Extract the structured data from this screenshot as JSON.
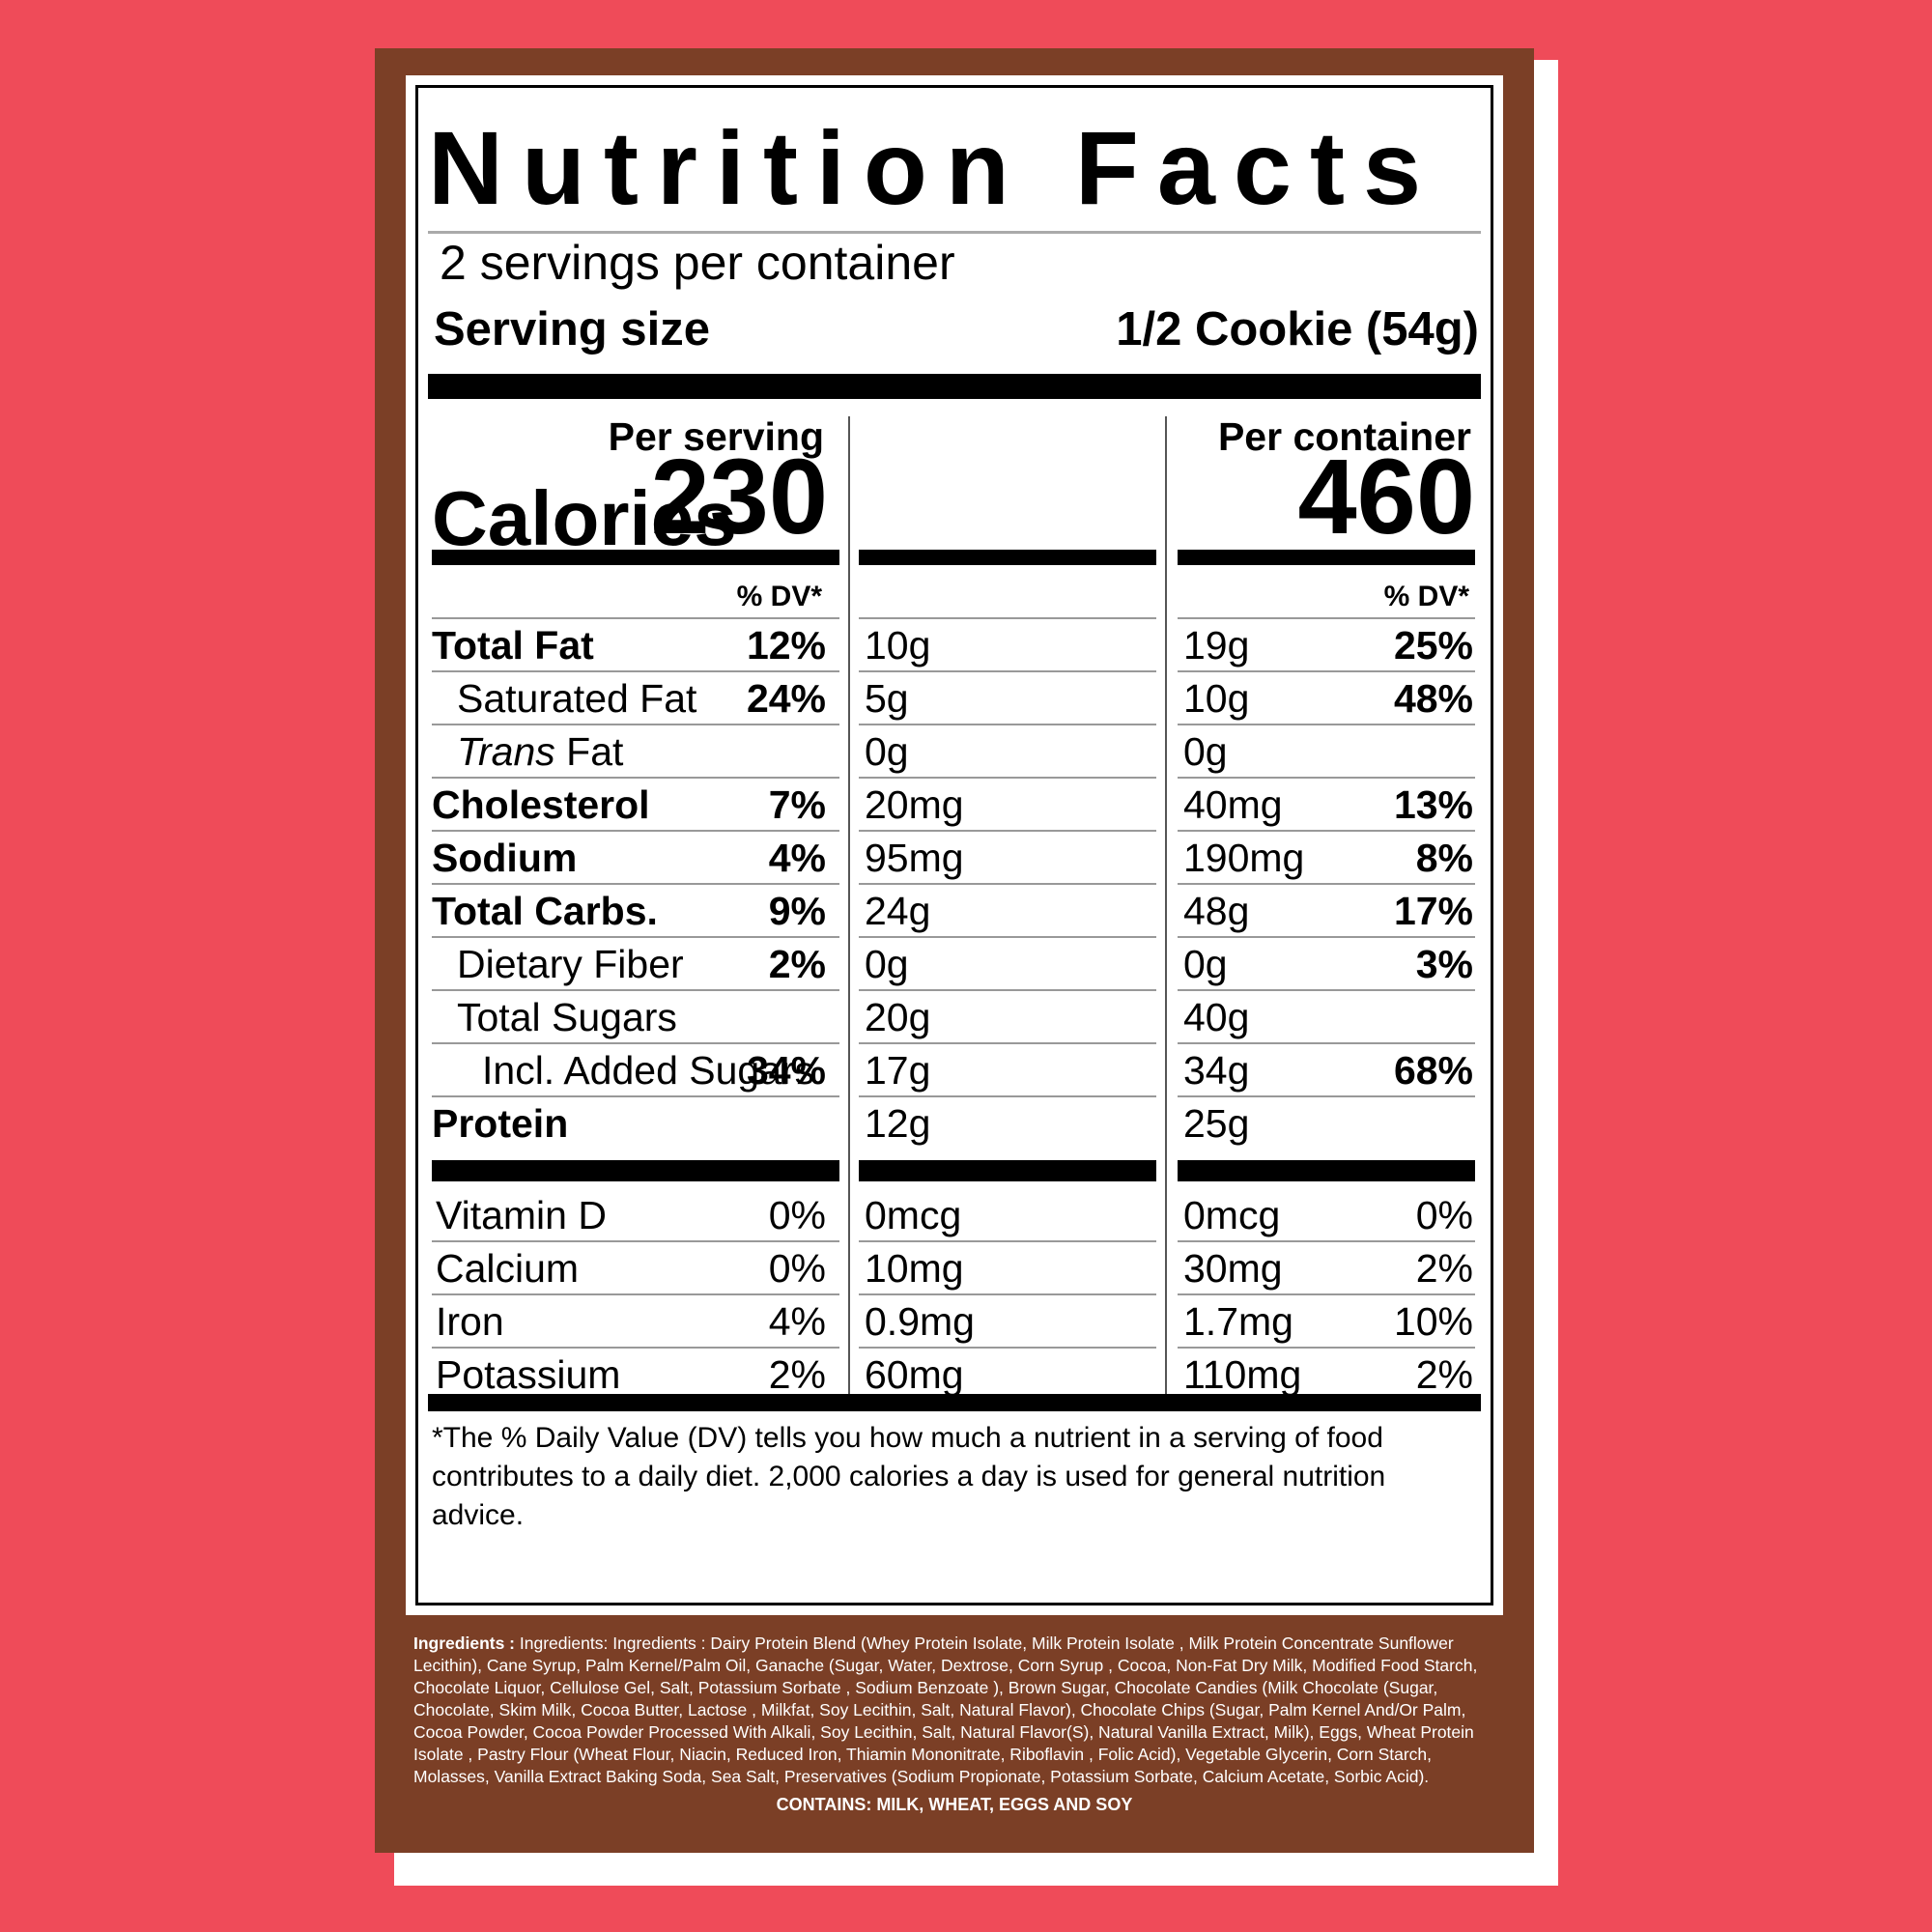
{
  "background_color": "#ef4b59",
  "box_color": "#7b3f26",
  "label": {
    "title": "Nutrition Facts",
    "servings_per_container": "2 servings per container",
    "serving_size_label": "Serving size",
    "serving_size_value": "1/2 Cookie (54g)",
    "per_serving_header": "Per serving",
    "per_container_header": "Per container",
    "calories_label": "Calories",
    "calories_per_serving": "230",
    "calories_per_container": "460",
    "dv_header": "% DV*",
    "rows": [
      {
        "name": "Total Fat",
        "s_amt": "10g",
        "s_dv": "12%",
        "c_amt": "19g",
        "c_dv": "25%"
      },
      {
        "name": "Saturated Fat",
        "s_amt": "5g",
        "s_dv": "24%",
        "c_amt": "10g",
        "c_dv": "48%"
      },
      {
        "name_italic": "Trans",
        "name": "Fat",
        "s_amt": "0g",
        "s_dv": "",
        "c_amt": "0g",
        "c_dv": ""
      },
      {
        "name": "Cholesterol",
        "s_amt": "20mg",
        "s_dv": "7%",
        "c_amt": "40mg",
        "c_dv": "13%"
      },
      {
        "name": "Sodium",
        "s_amt": "95mg",
        "s_dv": "4%",
        "c_amt": "190mg",
        "c_dv": "8%"
      },
      {
        "name": "Total Carbs.",
        "s_amt": "24g",
        "s_dv": "9%",
        "c_amt": "48g",
        "c_dv": "17%"
      },
      {
        "name": "Dietary Fiber",
        "s_amt": "0g",
        "s_dv": "2%",
        "c_amt": "0g",
        "c_dv": "3%"
      },
      {
        "name": "Total Sugars",
        "s_amt": "20g",
        "s_dv": "",
        "c_amt": "40g",
        "c_dv": ""
      },
      {
        "name": "Incl. Added Sugars",
        "s_amt": "17g",
        "s_dv": "34%",
        "c_amt": "34g",
        "c_dv": "68%"
      },
      {
        "name": "Protein",
        "s_amt": "12g",
        "s_dv": "",
        "c_amt": "25g",
        "c_dv": ""
      }
    ],
    "vitamins": [
      {
        "name": "Vitamin D",
        "s_amt": "0mcg",
        "s_dv": "0%",
        "c_amt": "0mcg",
        "c_dv": "0%"
      },
      {
        "name": "Calcium",
        "s_amt": "10mg",
        "s_dv": "0%",
        "c_amt": "30mg",
        "c_dv": "2%"
      },
      {
        "name": "Iron",
        "s_amt": "0.9mg",
        "s_dv": "4%",
        "c_amt": "1.7mg",
        "c_dv": "10%"
      },
      {
        "name": "Potassium",
        "s_amt": "60mg",
        "s_dv": "2%",
        "c_amt": "110mg",
        "c_dv": "2%"
      }
    ],
    "footnote": "*The % Daily Value (DV) tells you how much a nutrient in a serving of food contributes to a daily diet. 2,000 calories a day is used for general nutrition advice."
  },
  "ingredients_label": "Ingredients :",
  "ingredients_text": "Ingredients: Ingredients : Dairy Protein Blend (Whey Protein Isolate, Milk Protein Isolate , Milk Protein Concentrate Sunflower Lecithin), Cane Syrup, Palm Kernel/Palm Oil, Ganache (Sugar, Water, Dextrose, Corn Syrup , Cocoa, Non-Fat Dry Milk, Modified Food Starch, Chocolate Liquor, Cellulose Gel, Salt, Potassium Sorbate , Sodium Benzoate ), Brown Sugar, Chocolate Candies (Milk Chocolate (Sugar, Chocolate, Skim Milk, Cocoa Butter, Lactose , Milkfat, Soy Lecithin, Salt, Natural Flavor), Chocolate Chips (Sugar, Palm Kernel And/Or Palm, Cocoa Powder, Cocoa Powder Processed With Alkali, Soy Lecithin, Salt, Natural Flavor(S), Natural Vanilla Extract, Milk), Eggs, Wheat Protein Isolate , Pastry Flour (Wheat Flour, Niacin, Reduced Iron, Thiamin Mononitrate, Riboflavin , Folic Acid), Vegetable Glycerin, Corn Starch, Molasses, Vanilla Extract Baking Soda, Sea Salt, Preservatives (Sodium Propionate, Potassium Sorbate, Calcium Acetate, Sorbic Acid).",
  "contains": "CONTAINS: MILK, WHEAT, EGGS AND SOY"
}
